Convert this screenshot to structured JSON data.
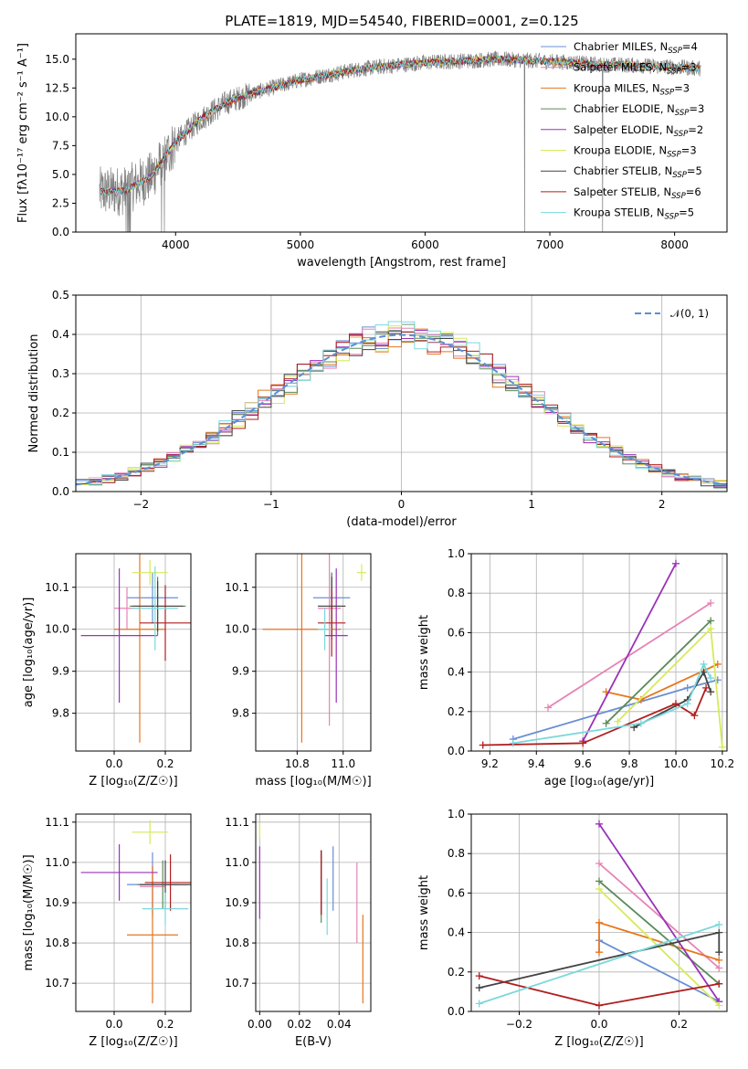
{
  "title": "PLATE=1819, MJD=54540, FIBERID=0001, z=0.125",
  "colors": {
    "chabrier_miles": "#6a8fd4",
    "salpeter_miles": "#e683b4",
    "kroupa_miles": "#e6761e",
    "chabrier_elodie": "#5a8a5a",
    "salpeter_elodie": "#9a32b8",
    "kroupa_elodie": "#d6ea5a",
    "chabrier_stelib": "#444444",
    "salpeter_stelib": "#b01e1e",
    "kroupa_stelib": "#7ad8dc",
    "data": "#808080",
    "normal": "#5b8fd6"
  },
  "chart_data": [
    {
      "type": "line",
      "id": "spectrum",
      "xlabel": "wavelength [Angstrom, rest frame]",
      "ylabel": "Flux [fλ10⁻¹⁷ erg cm⁻² s⁻¹ A⁻¹]",
      "xlim": [
        3200,
        8420
      ],
      "ylim": [
        0,
        17.2
      ],
      "xticks": [
        4000,
        5000,
        6000,
        7000,
        8000
      ],
      "yticks": [
        0.0,
        2.5,
        5.0,
        7.5,
        10.0,
        12.5,
        15.0
      ],
      "grid": false,
      "legend_position": "top-right",
      "legend": [
        {
          "key": "chabrier_miles",
          "label": "Chabrier MILES, N",
          "sub": "SSP",
          "suffix": "=4"
        },
        {
          "key": "salpeter_miles",
          "label": "Salpeter MILES, N",
          "sub": "SSP",
          "suffix": "=3"
        },
        {
          "key": "kroupa_miles",
          "label": "Kroupa MILES, N",
          "sub": "SSP",
          "suffix": "=3"
        },
        {
          "key": "chabrier_elodie",
          "label": "Chabrier ELODIE, N",
          "sub": "SSP",
          "suffix": "=3"
        },
        {
          "key": "salpeter_elodie",
          "label": "Salpeter ELODIE, N",
          "sub": "SSP",
          "suffix": "=2"
        },
        {
          "key": "kroupa_elodie",
          "label": "Kroupa ELODIE, N",
          "sub": "SSP",
          "suffix": "=3"
        },
        {
          "key": "chabrier_stelib",
          "label": "Chabrier STELIB, N",
          "sub": "SSP",
          "suffix": "=5"
        },
        {
          "key": "salpeter_stelib",
          "label": "Salpeter STELIB, N",
          "sub": "SSP",
          "suffix": "=6"
        },
        {
          "key": "kroupa_stelib",
          "label": "Kroupa STELIB, N",
          "sub": "SSP",
          "suffix": "=5"
        }
      ],
      "continuum": {
        "x": [
          3400,
          3600,
          3800,
          4000,
          4200,
          4400,
          4600,
          4800,
          5000,
          5200,
          5400,
          5600,
          5800,
          6000,
          6200,
          6400,
          6600,
          6800,
          7000,
          7200,
          7400,
          7600,
          7800,
          8000,
          8200
        ],
        "y": [
          3.5,
          3.6,
          4.8,
          7.8,
          9.8,
          11.2,
          12.0,
          12.6,
          13.2,
          13.6,
          14.0,
          14.3,
          14.5,
          14.7,
          14.8,
          14.9,
          15.0,
          14.9,
          14.8,
          14.7,
          14.5,
          14.5,
          14.4,
          14.3,
          14.2
        ]
      }
    },
    {
      "type": "histogram",
      "id": "residuals",
      "xlabel": "(data-model)/error",
      "ylabel": "Normed distribution",
      "xlim": [
        -2.5,
        2.5
      ],
      "ylim": [
        0,
        0.5
      ],
      "xticks": [
        -2,
        -1,
        0,
        1,
        2
      ],
      "xticklabels": [
        "−2",
        "−1",
        "0",
        "1",
        "2"
      ],
      "yticks": [
        0.0,
        0.1,
        0.2,
        0.3,
        0.4,
        0.5
      ],
      "grid": true,
      "legend_position": "top-right",
      "normal_label": "𝒩(0, 1)",
      "bin_width": 0.1
    },
    {
      "type": "scatter",
      "id": "age-vs-Z",
      "xlabel": "Z [log₁₀(Z/Z☉)]",
      "ylabel": "age  [log₁₀(age/yr)]",
      "xlim": [
        -0.15,
        0.3
      ],
      "ylim": [
        9.71,
        10.18
      ],
      "xticks": [
        0.0,
        0.2
      ],
      "yticks": [
        9.8,
        9.9,
        10.0,
        10.1
      ],
      "grid": true,
      "points": [
        {
          "key": "chabrier_miles",
          "x": 0.15,
          "y": 10.075,
          "xerr": 0.1,
          "yerr": 0.06
        },
        {
          "key": "salpeter_miles",
          "x": 0.05,
          "y": 10.05,
          "xerr": 0.05,
          "yerr": 0.05
        },
        {
          "key": "kroupa_miles",
          "x": 0.1,
          "y": 10.0,
          "xerr": 0.1,
          "yerr": 0.27
        },
        {
          "key": "chabrier_elodie",
          "x": 0.17,
          "y": 10.055,
          "xerr": 0.11,
          "yerr": 0.07
        },
        {
          "key": "salpeter_elodie",
          "x": 0.02,
          "y": 9.985,
          "xerr": 0.15,
          "yerr": 0.16
        },
        {
          "key": "kroupa_elodie",
          "x": 0.14,
          "y": 10.135,
          "xerr": 0.07,
          "yerr": 0.03
        },
        {
          "key": "chabrier_stelib",
          "x": 0.17,
          "y": 10.055,
          "xerr": 0.1,
          "yerr": 0.06
        },
        {
          "key": "salpeter_stelib",
          "x": 0.2,
          "y": 10.015,
          "xerr": 0.1,
          "yerr": 0.09
        },
        {
          "key": "kroupa_stelib",
          "x": 0.16,
          "y": 10.05,
          "xerr": 0.09,
          "yerr": 0.1
        }
      ]
    },
    {
      "type": "scatter",
      "id": "age-vs-mass",
      "xlabel": "mass [log₁₀(M/M☉)]",
      "ylabel": "",
      "xlim": [
        10.62,
        11.12
      ],
      "ylim": [
        9.71,
        10.18
      ],
      "xticks": [
        10.8,
        11.0
      ],
      "yticks": [
        9.8,
        9.9,
        10.0,
        10.1
      ],
      "grid": true,
      "points": [
        {
          "key": "chabrier_miles",
          "x": 10.95,
          "y": 10.075,
          "xerr": 0.08,
          "yerr": 0.06
        },
        {
          "key": "salpeter_miles",
          "x": 10.94,
          "y": 10.05,
          "xerr": 0.05,
          "yerr": 0.28
        },
        {
          "key": "kroupa_miles",
          "x": 10.82,
          "y": 10.0,
          "xerr": 0.17,
          "yerr": 0.27
        },
        {
          "key": "chabrier_elodie",
          "x": 10.95,
          "y": 10.055,
          "xerr": 0.06,
          "yerr": 0.08
        },
        {
          "key": "salpeter_elodie",
          "x": 10.97,
          "y": 9.985,
          "xerr": 0.05,
          "yerr": 0.16
        },
        {
          "key": "kroupa_elodie",
          "x": 11.08,
          "y": 10.135,
          "xerr": 0.02,
          "yerr": 0.02
        },
        {
          "key": "chabrier_stelib",
          "x": 10.95,
          "y": 10.055,
          "xerr": 0.06,
          "yerr": 0.07
        },
        {
          "key": "salpeter_stelib",
          "x": 10.95,
          "y": 10.015,
          "xerr": 0.06,
          "yerr": 0.08
        },
        {
          "key": "kroupa_stelib",
          "x": 10.92,
          "y": 10.0,
          "xerr": 0.03,
          "yerr": 0.05
        }
      ]
    },
    {
      "type": "line",
      "id": "weight-vs-age",
      "xlabel": "age  [log₁₀(age/yr)]",
      "ylabel": "mass weight",
      "xlim": [
        9.12,
        10.22
      ],
      "ylim": [
        0,
        1.0
      ],
      "xticks": [
        9.2,
        9.4,
        9.6,
        9.8,
        10.0,
        10.2
      ],
      "yticks": [
        0.0,
        0.2,
        0.4,
        0.6,
        0.8,
        1.0
      ],
      "grid": true,
      "series": [
        {
          "key": "chabrier_miles",
          "x": [
            9.3,
            10.05,
            10.18
          ],
          "y": [
            0.06,
            0.32,
            0.36
          ]
        },
        {
          "key": "salpeter_miles",
          "x": [
            9.45,
            10.15
          ],
          "y": [
            0.22,
            0.75
          ]
        },
        {
          "key": "kroupa_miles",
          "x": [
            9.7,
            9.85,
            10.18
          ],
          "y": [
            0.3,
            0.26,
            0.44
          ]
        },
        {
          "key": "chabrier_elodie",
          "x": [
            9.7,
            10.15
          ],
          "y": [
            0.14,
            0.66
          ]
        },
        {
          "key": "salpeter_elodie",
          "x": [
            9.6,
            10.0
          ],
          "y": [
            0.05,
            0.95
          ]
        },
        {
          "key": "kroupa_elodie",
          "x": [
            9.75,
            10.15,
            10.2
          ],
          "y": [
            0.15,
            0.62,
            0.02
          ]
        },
        {
          "key": "chabrier_stelib",
          "x": [
            9.82,
            10.05,
            10.12,
            10.15
          ],
          "y": [
            0.12,
            0.26,
            0.4,
            0.3
          ]
        },
        {
          "key": "salpeter_stelib",
          "x": [
            9.17,
            9.6,
            10.0,
            10.08,
            10.13
          ],
          "y": [
            0.03,
            0.04,
            0.24,
            0.18,
            0.32
          ]
        },
        {
          "key": "kroupa_stelib",
          "x": [
            9.3,
            9.85,
            10.05,
            10.12,
            10.15
          ],
          "y": [
            0.04,
            0.14,
            0.24,
            0.44,
            0.37
          ]
        }
      ]
    },
    {
      "type": "scatter",
      "id": "mass-vs-Z",
      "xlabel": "Z [log₁₀(Z/Z☉)]",
      "ylabel": "mass [log₁₀(M/M☉)]",
      "xlim": [
        -0.15,
        0.3
      ],
      "ylim": [
        10.63,
        11.12
      ],
      "xticks": [
        0.0,
        0.2
      ],
      "yticks": [
        10.7,
        10.8,
        10.9,
        11.0,
        11.1
      ],
      "grid": true,
      "points": [
        {
          "key": "chabrier_miles",
          "x": 0.15,
          "y": 10.945,
          "xerr": 0.1,
          "yerr": 0.08
        },
        {
          "key": "salpeter_miles",
          "x": 0.15,
          "y": 10.94,
          "xerr": 0.05,
          "yerr": 0.05
        },
        {
          "key": "kroupa_miles",
          "x": 0.15,
          "y": 10.82,
          "xerr": 0.1,
          "yerr": 0.17
        },
        {
          "key": "chabrier_elodie",
          "x": 0.19,
          "y": 10.945,
          "xerr": 0.1,
          "yerr": 0.06
        },
        {
          "key": "salpeter_elodie",
          "x": 0.02,
          "y": 10.975,
          "xerr": 0.15,
          "yerr": 0.07
        },
        {
          "key": "kroupa_elodie",
          "x": 0.14,
          "y": 11.075,
          "xerr": 0.07,
          "yerr": 0.03
        },
        {
          "key": "chabrier_stelib",
          "x": 0.2,
          "y": 10.945,
          "xerr": 0.1,
          "yerr": 0.06
        },
        {
          "key": "salpeter_stelib",
          "x": 0.22,
          "y": 10.95,
          "xerr": 0.1,
          "yerr": 0.07
        },
        {
          "key": "kroupa_stelib",
          "x": 0.2,
          "y": 10.885,
          "xerr": 0.09,
          "yerr": 0.04
        }
      ]
    },
    {
      "type": "scatter",
      "id": "mass-vs-EBV",
      "xlabel": "E(B-V)",
      "ylabel": "",
      "xlim": [
        -0.002,
        0.056
      ],
      "ylim": [
        10.63,
        11.12
      ],
      "xticks": [
        0.0,
        0.02,
        0.04
      ],
      "yticks": [
        10.7,
        10.8,
        10.9,
        11.0,
        11.1
      ],
      "grid": true,
      "points": [
        {
          "key": "chabrier_miles",
          "x": 0.037,
          "y": 10.96,
          "xerr": 0,
          "yerr": 0.08
        },
        {
          "key": "salpeter_miles",
          "x": 0.049,
          "y": 10.9,
          "xerr": 0,
          "yerr": 0.1
        },
        {
          "key": "kroupa_miles",
          "x": 0.052,
          "y": 10.76,
          "xerr": 0,
          "yerr": 0.11
        },
        {
          "key": "chabrier_elodie",
          "x": 0.031,
          "y": 10.94,
          "xerr": 0,
          "yerr": 0.09
        },
        {
          "key": "salpeter_elodie",
          "x": 0.0,
          "y": 10.95,
          "xerr": 0,
          "yerr": 0.09
        },
        {
          "key": "kroupa_elodie",
          "x": 0.0,
          "y": 11.08,
          "xerr": 0,
          "yerr": 0.02
        },
        {
          "key": "chabrier_stelib",
          "x": 0.031,
          "y": 10.95,
          "xerr": 0,
          "yerr": 0.08
        },
        {
          "key": "salpeter_stelib",
          "x": 0.031,
          "y": 10.95,
          "xerr": 0,
          "yerr": 0.08
        },
        {
          "key": "kroupa_stelib",
          "x": 0.034,
          "y": 10.89,
          "xerr": 0,
          "yerr": 0.07
        }
      ]
    },
    {
      "type": "line",
      "id": "weight-vs-Z",
      "xlabel": "Z [log₁₀(Z/Z☉)]",
      "ylabel": "mass weight",
      "xlim": [
        -0.32,
        0.32
      ],
      "ylim": [
        0,
        1.0
      ],
      "xticks": [
        -0.2,
        0.0,
        0.2
      ],
      "xticklabels": [
        "−0.2",
        "0.0",
        "0.2"
      ],
      "yticks": [
        0.0,
        0.2,
        0.4,
        0.6,
        0.8,
        1.0
      ],
      "grid": true,
      "series": [
        {
          "key": "chabrier_miles",
          "x": [
            0.0,
            0.3
          ],
          "y": [
            0.36,
            0.05
          ]
        },
        {
          "key": "salpeter_miles",
          "x": [
            0.0,
            0.3
          ],
          "y": [
            0.75,
            0.22
          ]
        },
        {
          "key": "kroupa_miles",
          "x": [
            0.0,
            0.0,
            0.3
          ],
          "y": [
            0.3,
            0.45,
            0.26
          ]
        },
        {
          "key": "chabrier_elodie",
          "x": [
            0.0,
            0.3
          ],
          "y": [
            0.66,
            0.14
          ]
        },
        {
          "key": "salpeter_elodie",
          "x": [
            0.0,
            0.3
          ],
          "y": [
            0.95,
            0.05
          ]
        },
        {
          "key": "kroupa_elodie",
          "x": [
            0.0,
            0.3
          ],
          "y": [
            0.62,
            0.03
          ]
        },
        {
          "key": "chabrier_stelib",
          "x": [
            -0.3,
            0.3,
            0.3
          ],
          "y": [
            0.12,
            0.4,
            0.3
          ]
        },
        {
          "key": "salpeter_stelib",
          "x": [
            -0.3,
            0.0,
            0.3
          ],
          "y": [
            0.18,
            0.03,
            0.14
          ]
        },
        {
          "key": "kroupa_stelib",
          "x": [
            -0.3,
            0.3
          ],
          "y": [
            0.04,
            0.44
          ]
        }
      ]
    }
  ]
}
